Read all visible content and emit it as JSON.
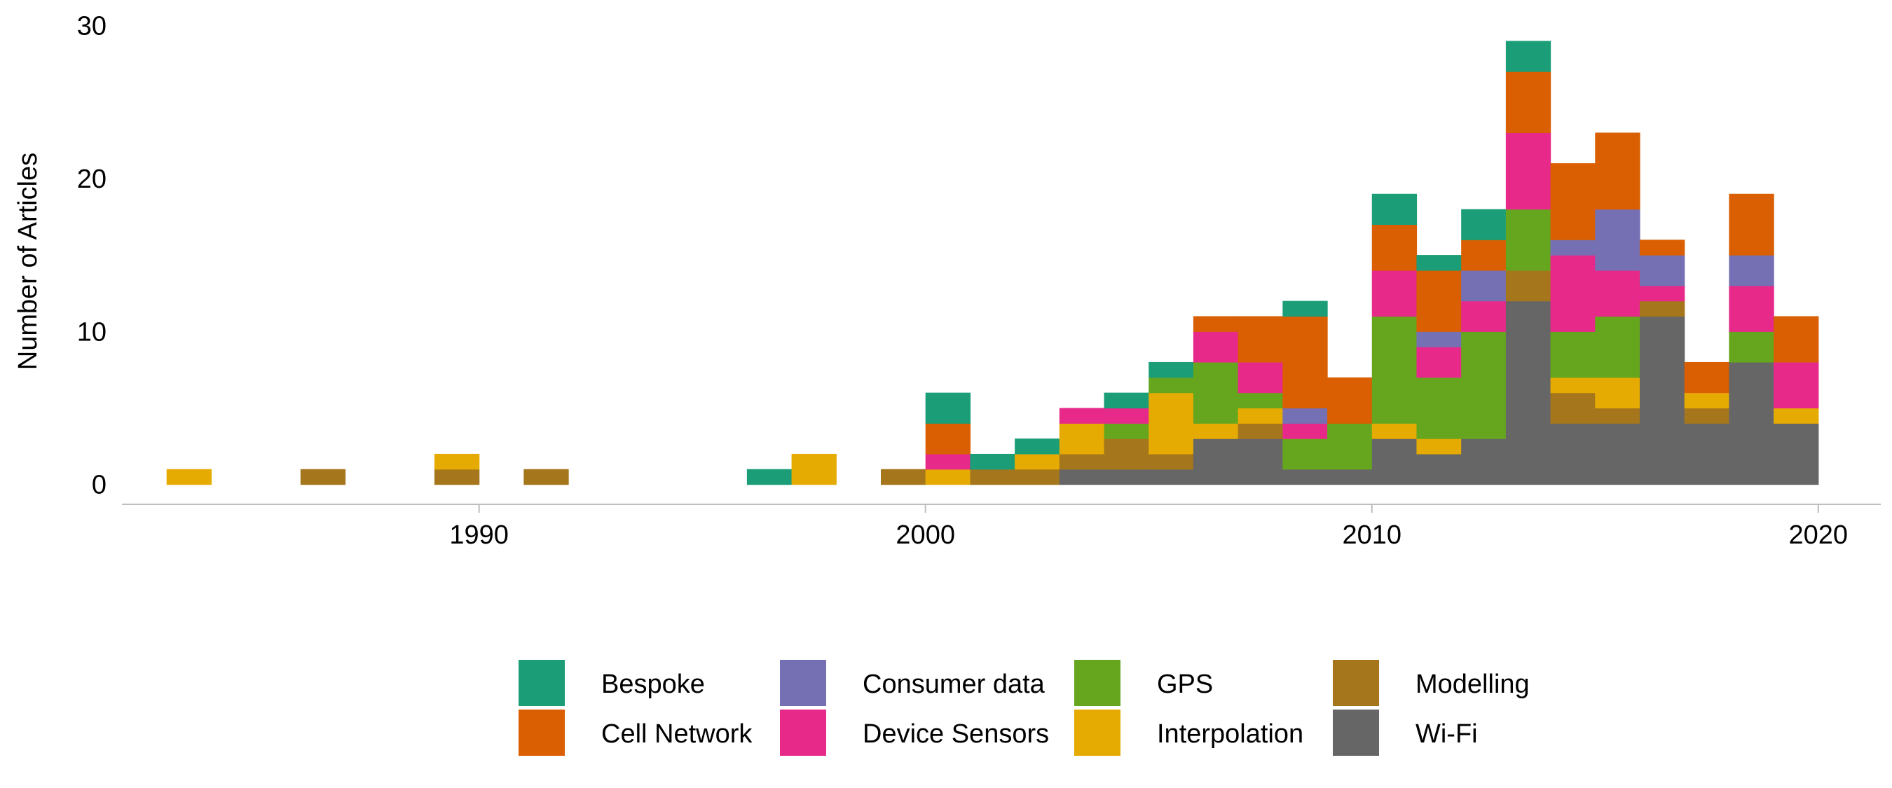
{
  "chart_data": {
    "type": "bar",
    "stacked": true,
    "title": "",
    "xlabel": "",
    "ylabel": "Number of Articles",
    "xlim": [
      1982.0,
      2021.4
    ],
    "ylim": [
      -1.3,
      30.3
    ],
    "xticks": [
      1990,
      2000,
      2010,
      2020
    ],
    "yticks": [
      0,
      10,
      20,
      30
    ],
    "bin_width": 1,
    "grid": false,
    "legend_position": "bottom",
    "stack_order": [
      "Wi-Fi",
      "Modelling",
      "Interpolation",
      "GPS",
      "Device Sensors",
      "Consumer data",
      "Cell Network",
      "Bespoke"
    ],
    "legend": [
      {
        "name": "Bespoke",
        "color": "#1b9e77"
      },
      {
        "name": "Cell Network",
        "color": "#d95f02"
      },
      {
        "name": "Consumer data",
        "color": "#7570b3"
      },
      {
        "name": "Device Sensors",
        "color": "#e7298a"
      },
      {
        "name": "GPS",
        "color": "#66a61e"
      },
      {
        "name": "Interpolation",
        "color": "#e6ab02"
      },
      {
        "name": "Modelling",
        "color": "#a6761d"
      },
      {
        "name": "Wi-Fi",
        "color": "#666666"
      }
    ],
    "bins": [
      {
        "x": 1983.5,
        "counts": {
          "Interpolation": 1
        }
      },
      {
        "x": 1986.5,
        "counts": {
          "Modelling": 1
        }
      },
      {
        "x": 1989.5,
        "counts": {
          "Modelling": 1,
          "Interpolation": 1
        }
      },
      {
        "x": 1991.5,
        "counts": {
          "Modelling": 1
        }
      },
      {
        "x": 1996.5,
        "counts": {
          "Bespoke": 1
        }
      },
      {
        "x": 1997.5,
        "counts": {
          "Interpolation": 2
        }
      },
      {
        "x": 1999.5,
        "counts": {
          "Modelling": 1
        }
      },
      {
        "x": 2000.5,
        "counts": {
          "Interpolation": 1,
          "Device Sensors": 1,
          "Cell Network": 2,
          "Bespoke": 2
        }
      },
      {
        "x": 2001.5,
        "counts": {
          "Modelling": 1,
          "Bespoke": 1
        }
      },
      {
        "x": 2002.5,
        "counts": {
          "Modelling": 1,
          "Interpolation": 1,
          "Bespoke": 1
        }
      },
      {
        "x": 2003.5,
        "counts": {
          "Wi-Fi": 1,
          "Modelling": 1,
          "Interpolation": 2,
          "Device Sensors": 1
        }
      },
      {
        "x": 2004.5,
        "counts": {
          "Wi-Fi": 1,
          "Modelling": 2,
          "GPS": 1,
          "Device Sensors": 1,
          "Bespoke": 1
        }
      },
      {
        "x": 2005.5,
        "counts": {
          "Wi-Fi": 1,
          "Modelling": 1,
          "Interpolation": 4,
          "GPS": 1,
          "Bespoke": 1
        }
      },
      {
        "x": 2006.5,
        "counts": {
          "Wi-Fi": 3,
          "Interpolation": 1,
          "GPS": 4,
          "Device Sensors": 2,
          "Cell Network": 1
        }
      },
      {
        "x": 2007.5,
        "counts": {
          "Wi-Fi": 3,
          "Modelling": 1,
          "Interpolation": 1,
          "GPS": 1,
          "Device Sensors": 2,
          "Cell Network": 3
        }
      },
      {
        "x": 2008.5,
        "counts": {
          "Wi-Fi": 1,
          "GPS": 2,
          "Device Sensors": 1,
          "Consumer data": 1,
          "Cell Network": 6,
          "Bespoke": 1
        }
      },
      {
        "x": 2009.5,
        "counts": {
          "Wi-Fi": 1,
          "GPS": 3,
          "Cell Network": 3
        }
      },
      {
        "x": 2010.5,
        "counts": {
          "Wi-Fi": 3,
          "Interpolation": 1,
          "GPS": 7,
          "Device Sensors": 3,
          "Cell Network": 3,
          "Bespoke": 2
        }
      },
      {
        "x": 2011.5,
        "counts": {
          "Wi-Fi": 2,
          "Interpolation": 1,
          "GPS": 4,
          "Device Sensors": 2,
          "Consumer data": 1,
          "Cell Network": 4,
          "Bespoke": 1
        }
      },
      {
        "x": 2012.5,
        "counts": {
          "Wi-Fi": 3,
          "GPS": 7,
          "Device Sensors": 2,
          "Consumer data": 2,
          "Cell Network": 2,
          "Bespoke": 2
        }
      },
      {
        "x": 2013.5,
        "counts": {
          "Wi-Fi": 12,
          "Modelling": 2,
          "GPS": 4,
          "Device Sensors": 5,
          "Cell Network": 4,
          "Bespoke": 2
        }
      },
      {
        "x": 2014.5,
        "counts": {
          "Wi-Fi": 4,
          "Modelling": 2,
          "Interpolation": 1,
          "GPS": 3,
          "Device Sensors": 5,
          "Consumer data": 1,
          "Cell Network": 5
        }
      },
      {
        "x": 2015.5,
        "counts": {
          "Wi-Fi": 4,
          "Modelling": 1,
          "Interpolation": 2,
          "GPS": 4,
          "Device Sensors": 3,
          "Consumer data": 4,
          "Cell Network": 5
        }
      },
      {
        "x": 2016.5,
        "counts": {
          "Wi-Fi": 11,
          "Modelling": 1,
          "Device Sensors": 1,
          "Consumer data": 2,
          "Cell Network": 1
        }
      },
      {
        "x": 2017.5,
        "counts": {
          "Wi-Fi": 4,
          "Modelling": 1,
          "Interpolation": 1,
          "Cell Network": 2
        }
      },
      {
        "x": 2018.5,
        "counts": {
          "Wi-Fi": 8,
          "GPS": 2,
          "Device Sensors": 3,
          "Consumer data": 2,
          "Cell Network": 4
        }
      },
      {
        "x": 2019.5,
        "counts": {
          "Wi-Fi": 4,
          "Interpolation": 1,
          "Device Sensors": 3,
          "Cell Network": 3
        }
      }
    ]
  }
}
